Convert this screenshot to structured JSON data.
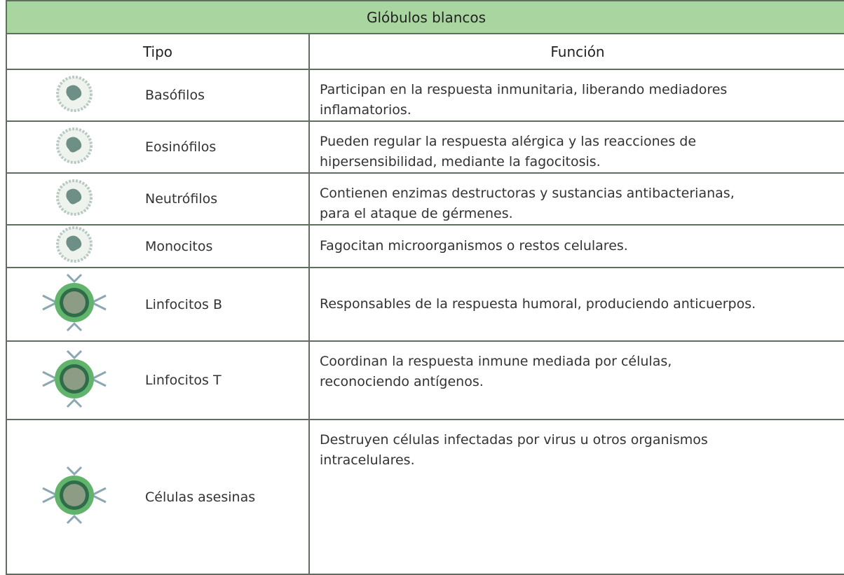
{
  "table": {
    "title": "Glóbulos blancos",
    "headers": [
      "Tipo",
      "Función"
    ],
    "rows": [
      {
        "type": "Basófilos",
        "function": [
          "Participan en la respuesta inmunitaria, liberando mediadores",
          "inflamatorios."
        ]
      },
      {
        "type": "Eosinófilos",
        "function": [
          "Pueden regular la respuesta alérgica y las reacciones de",
          "hipersensibilidad, mediante la fagocitosis."
        ]
      },
      {
        "type": "Neutrófilos",
        "function": [
          "Contienen enzimas destructoras y sustancias antibacterianas,",
          "para el ataque de gérmenes."
        ]
      },
      {
        "type": "Monocitos",
        "function": [
          "Fagocitan microorganismos o restos celulares."
        ]
      },
      {
        "type": "Linfocitos B",
        "function": [
          "Responsables de la respuesta humoral, produciendo anticuerpos."
        ]
      },
      {
        "type": "Linfocitos T",
        "function": [
          "Coordinan la respuesta inmune mediada por células,",
          "reconociendo antígenos."
        ]
      },
      {
        "type": "Células asesinas",
        "function": [
          "Destruyen células infectadas por virus u otros organismos",
          "intracelulares."
        ]
      }
    ]
  }
}
